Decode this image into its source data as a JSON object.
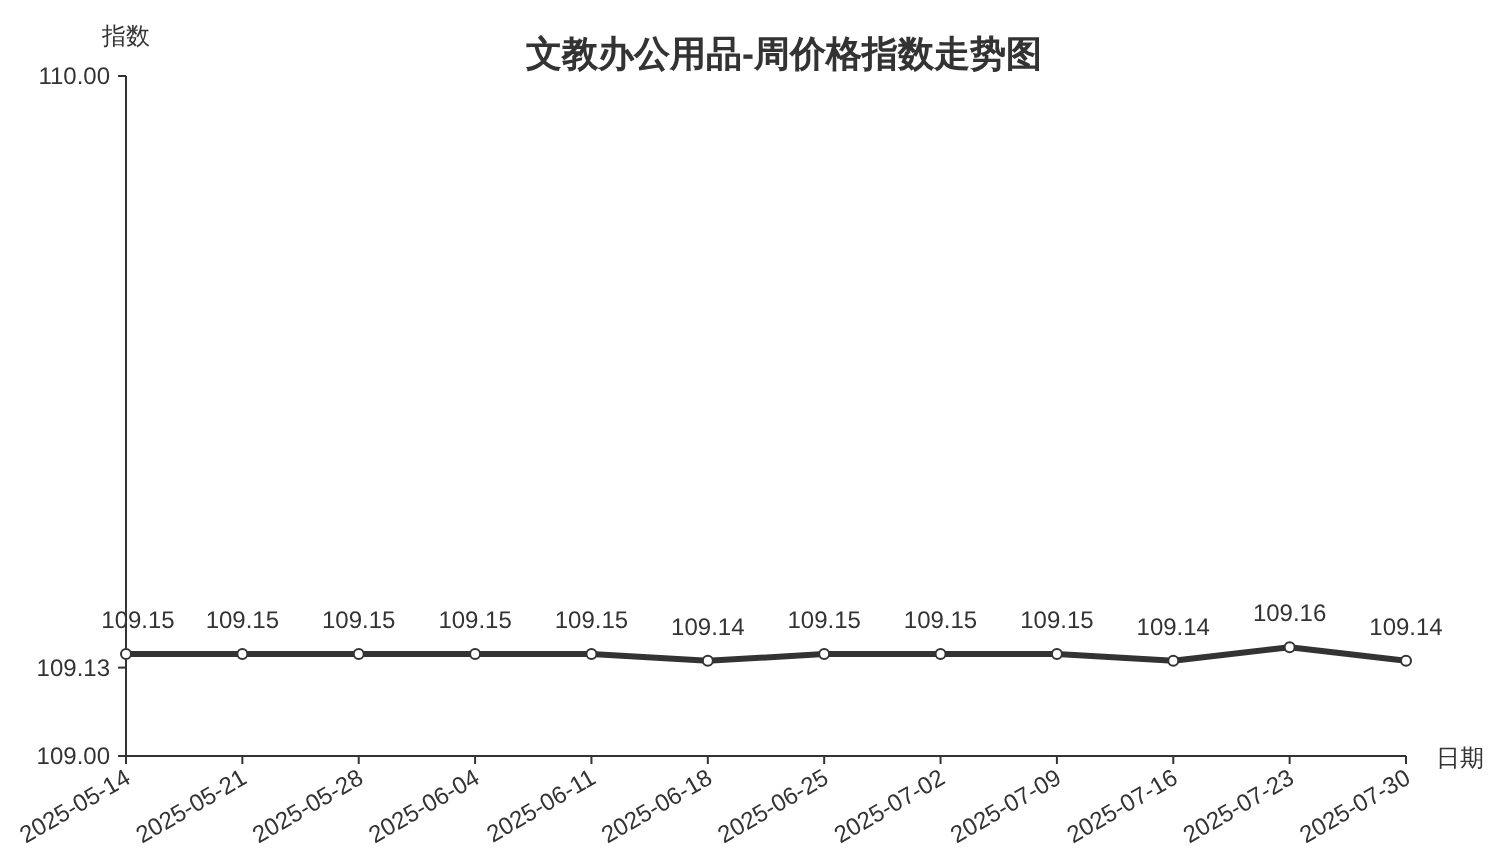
{
  "chart_data": {
    "type": "line",
    "title": "文教办公用品-周价格指数走势图",
    "xlabel": "日期",
    "ylabel": "指数",
    "categories": [
      "2025-05-14",
      "2025-05-21",
      "2025-05-28",
      "2025-06-04",
      "2025-06-11",
      "2025-06-18",
      "2025-06-25",
      "2025-07-02",
      "2025-07-09",
      "2025-07-16",
      "2025-07-23",
      "2025-07-30"
    ],
    "series": [
      {
        "color": "#333333",
        "values": [
          109.15,
          109.15,
          109.15,
          109.15,
          109.15,
          109.14,
          109.15,
          109.15,
          109.15,
          109.14,
          109.16,
          109.14
        ]
      }
    ],
    "ylim": [
      109,
      110
    ],
    "yticks": [
      {
        "value": 109,
        "label": "109.00"
      },
      {
        "value": 109.13,
        "label": "109.13"
      },
      {
        "value": 110,
        "label": "110.00"
      }
    ],
    "data_labels": true,
    "marker": "circle"
  }
}
